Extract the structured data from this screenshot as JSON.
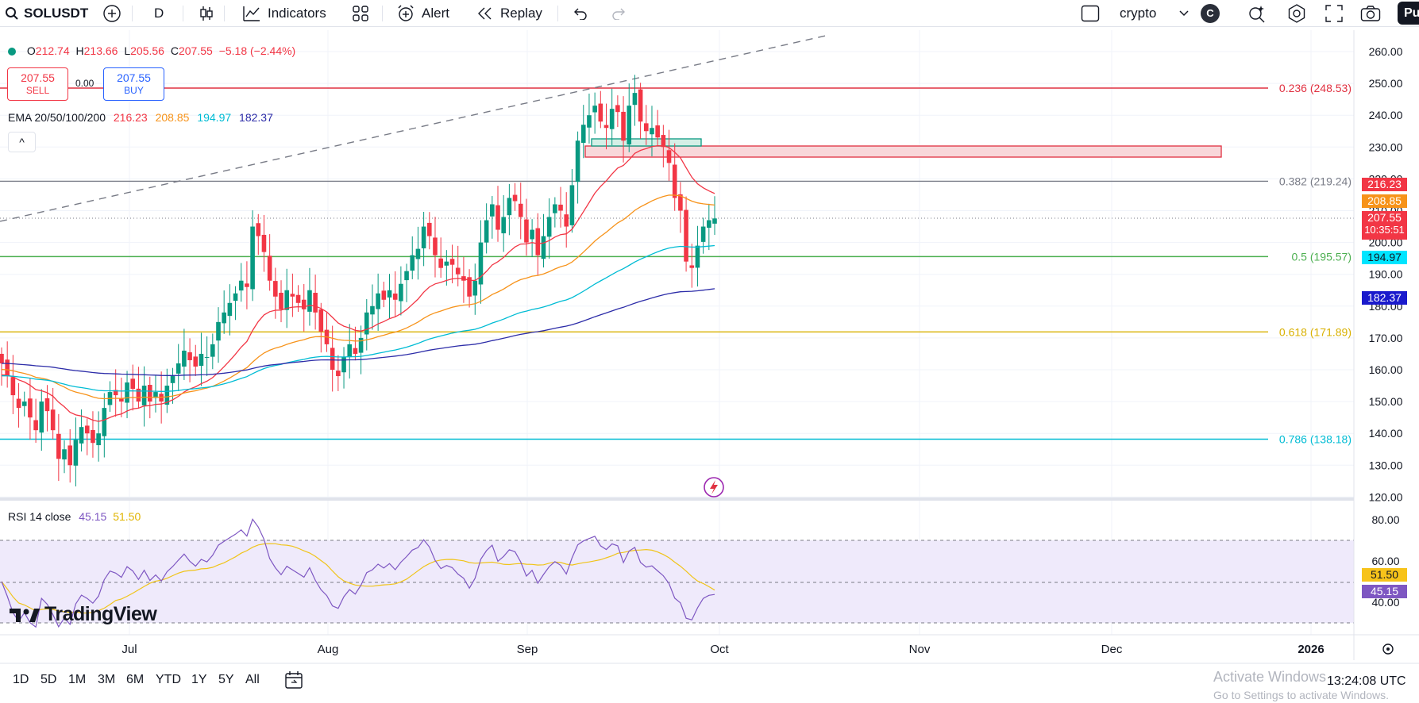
{
  "toolbar": {
    "symbol": "SOLUSDT",
    "interval": "D",
    "indicators_label": "Indicators",
    "alert_label": "Alert",
    "replay_label": "Replay",
    "layout_name": "crypto",
    "avatar_letter": "C",
    "publish_label": "Pu"
  },
  "legend": {
    "open_label": "O",
    "open": "212.74",
    "high_label": "H",
    "high": "213.66",
    "low_label": "L",
    "low": "205.56",
    "close_label": "C",
    "close": "207.55",
    "change": "−5.18 (−2.44%)",
    "sell_price": "207.55",
    "sell_label": "SELL",
    "spread": "0.00",
    "buy_price": "207.55",
    "buy_label": "BUY",
    "ema_label": "EMA 20/50/100/200",
    "ema20": "216.23",
    "ema50": "208.85",
    "ema100": "194.97",
    "ema200": "182.37",
    "collapse_glyph": "^"
  },
  "rsi": {
    "label": "RSI 14 close",
    "value": "45.15",
    "ma": "51.50"
  },
  "price_axis": [
    "260.00",
    "250.00",
    "240.00",
    "230.00",
    "220.00",
    "210.00",
    "200.00",
    "190.00",
    "180.00",
    "170.00",
    "160.00",
    "150.00",
    "140.00",
    "130.00",
    "120.00"
  ],
  "rsi_axis": [
    "80.00",
    "60.00",
    "40.00"
  ],
  "time_axis": [
    "Jul",
    "Aug",
    "Sep",
    "Oct",
    "Nov",
    "Dec",
    "2026"
  ],
  "fib_levels": [
    {
      "label": "0.236 (248.53)",
      "color": "#e03040"
    },
    {
      "label": "0.382 (219.24)",
      "color": "#787b86"
    },
    {
      "label": "0.5 (195.57)",
      "color": "#4caf50"
    },
    {
      "label": "0.618 (171.89)",
      "color": "#d9b000"
    },
    {
      "label": "0.786 (138.18)",
      "color": "#00bcd4"
    }
  ],
  "price_tags": {
    "ema20": "216.23",
    "ema50": "208.85",
    "last": "207.55",
    "countdown": "10:35:51",
    "ema100": "194.97",
    "ema200": "182.37",
    "rsi_ma": "51.50",
    "rsi": "45.15"
  },
  "colors": {
    "up": "#089981",
    "down": "#f23645",
    "ema20": "#f23645",
    "ema50": "#f7931a",
    "ema100": "#00bcd4",
    "ema200": "#2c2ca8",
    "rsi": "#7e57c2",
    "rsi_ma": "#f0c419"
  },
  "bottom": {
    "ranges": [
      "1D",
      "5D",
      "1M",
      "3M",
      "6M",
      "YTD",
      "1Y",
      "5Y",
      "All"
    ],
    "clock": "13:24:08 UTC",
    "activate_title": "Activate Windows",
    "activate_sub": "Go to Settings to activate Windows."
  },
  "watermark": "TradingView"
}
